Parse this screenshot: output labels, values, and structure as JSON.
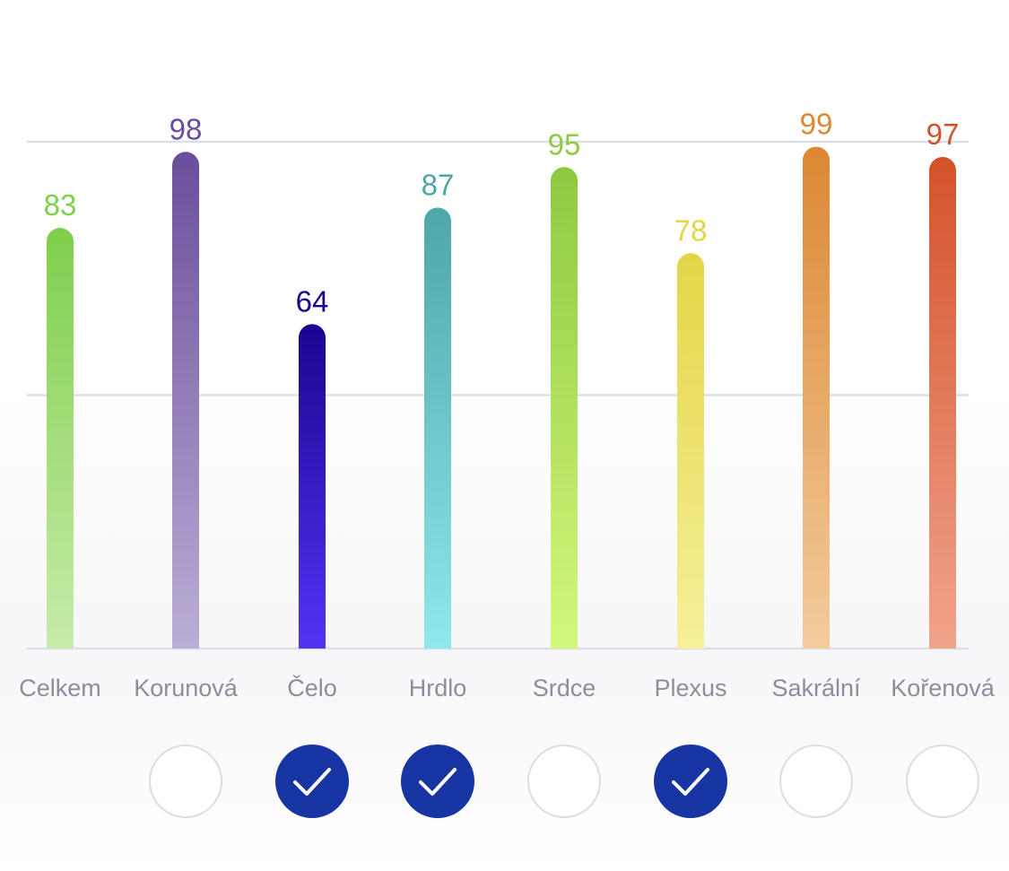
{
  "chart_data": {
    "type": "bar",
    "categories": [
      "Celkem",
      "Korunová",
      "Čelo",
      "Hrdlo",
      "Srdce",
      "Plexus",
      "Sakrální",
      "Kořenová"
    ],
    "values": [
      83,
      98,
      64,
      87,
      95,
      78,
      99,
      97
    ],
    "title": "",
    "xlabel": "",
    "ylabel": "",
    "ylim": [
      0,
      100
    ],
    "grid": true,
    "colors": [
      {
        "top": "#7ecf4c",
        "bottom": "#c7ecaa",
        "label": "#7ecf4c"
      },
      {
        "top": "#6a4e9b",
        "bottom": "#bbaed6",
        "label": "#6a4e9b"
      },
      {
        "top": "#1c0390",
        "bottom": "#5533f5",
        "label": "#1c0390"
      },
      {
        "top": "#4ea6a8",
        "bottom": "#8ee8ec",
        "label": "#4ea6a8"
      },
      {
        "top": "#8ec93f",
        "bottom": "#d3f97a",
        "label": "#8ec93f"
      },
      {
        "top": "#e3d646",
        "bottom": "#f6f09a",
        "label": "#e3d646"
      },
      {
        "top": "#dc8733",
        "bottom": "#f3cc9d",
        "label": "#dc8733"
      },
      {
        "top": "#d4522a",
        "bottom": "#f0a48c",
        "label": "#d4522a"
      }
    ]
  },
  "selection": {
    "checked": [
      null,
      false,
      true,
      true,
      false,
      true,
      false,
      false
    ],
    "active_color": "#1734a3",
    "check_icon": "checkmark-icon"
  }
}
